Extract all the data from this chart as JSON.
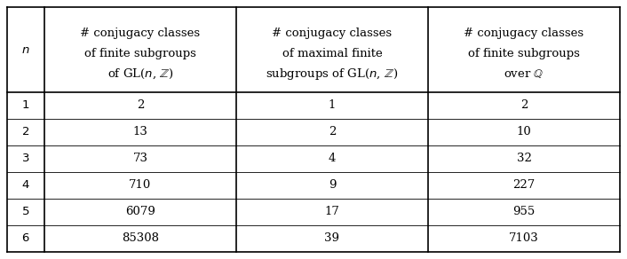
{
  "n_values": [
    "1",
    "2",
    "3",
    "4",
    "5",
    "6"
  ],
  "col1_values": [
    "2",
    "13",
    "73",
    "710",
    "6079",
    "85308"
  ],
  "col2_values": [
    "1",
    "2",
    "4",
    "9",
    "17",
    "39"
  ],
  "col3_values": [
    "2",
    "10",
    "32",
    "227",
    "955",
    "7103"
  ],
  "header_col0": "n",
  "header_col1_lines": [
    "# conjugacy classes",
    "of finite subgroups",
    "of GL(n, ℤ)"
  ],
  "header_col2_lines": [
    "# conjugacy classes",
    "of maximal finite",
    "subgroups of GL(n, ℤ)"
  ],
  "header_col3_lines": [
    "# conjugacy classes",
    "of finite subgroups",
    "over ℚ"
  ],
  "bg_color": "#ffffff",
  "line_color": "#000000",
  "text_color": "#000000",
  "font_size": 9.5
}
